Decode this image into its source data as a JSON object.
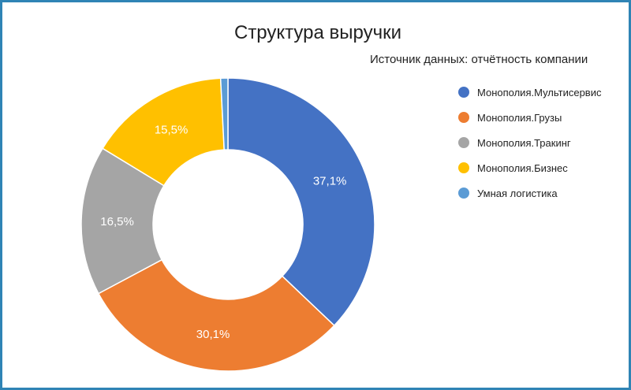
{
  "chart_data": {
    "type": "pie",
    "title": "Структура выручки",
    "subtitle": "Источник данных: отчётность компании",
    "donut": true,
    "legend_position": "right",
    "categories": [
      "Монополия.Мультисервис",
      "Монополия.Грузы",
      "Монополия.Тракинг",
      "Монополия.Бизнес",
      "Умная логистика"
    ],
    "values": [
      37.1,
      30.1,
      16.5,
      15.5,
      0.8
    ],
    "labels": [
      "37,1%",
      "30,1%",
      "16,5%",
      "15,5%",
      ""
    ],
    "colors": [
      "#4472c4",
      "#ed7d31",
      "#a5a5a5",
      "#ffc000",
      "#5b9bd5"
    ]
  }
}
